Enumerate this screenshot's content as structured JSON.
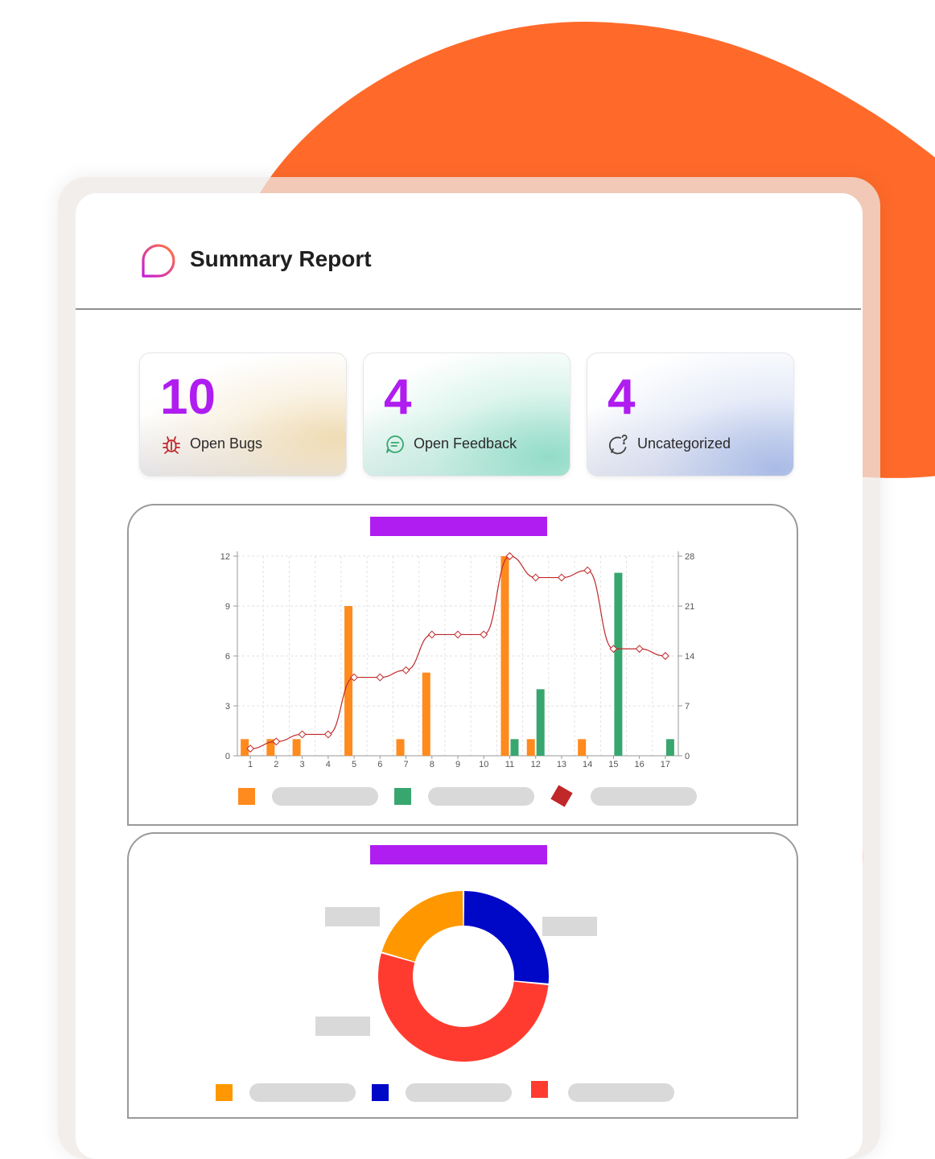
{
  "header": {
    "title": "Summary Report"
  },
  "stats": [
    {
      "value": "10",
      "label": "Open Bugs",
      "icon": "bug-icon"
    },
    {
      "value": "4",
      "label": "Open Feedback",
      "icon": "chat-icon"
    },
    {
      "value": "4",
      "label": "Uncategorized",
      "icon": "question-chat-icon"
    }
  ],
  "colors": {
    "accent": "#b01df0",
    "blob": "#ff6a2a",
    "bar_orange": "#ff8a1e",
    "bar_green": "#38a66f",
    "line_red": "#c0282a",
    "donut_orange": "#ff9800",
    "donut_blue": "#0008c8",
    "donut_red": "#ff3b30",
    "placeholder_gray": "#d9d9d9"
  },
  "chart_data": [
    {
      "type": "bar",
      "x": [
        1,
        2,
        3,
        4,
        5,
        6,
        7,
        8,
        9,
        10,
        11,
        12,
        13,
        14,
        15,
        16,
        17
      ],
      "series": [
        {
          "type": "bar",
          "color": "#ff8a1e",
          "values": [
            1,
            1,
            1,
            0,
            9,
            0,
            1,
            5,
            0,
            0,
            12,
            1,
            0,
            1,
            0,
            0,
            0
          ]
        },
        {
          "type": "bar",
          "color": "#38a66f",
          "values": [
            0,
            0,
            0,
            0,
            0,
            0,
            0,
            0,
            0,
            0,
            1,
            4,
            0,
            0,
            11,
            0,
            1
          ]
        },
        {
          "type": "line",
          "color": "#c0282a",
          "axis": "right",
          "values": [
            1,
            2,
            3,
            3,
            11,
            11,
            12,
            17,
            17,
            17,
            28,
            25,
            25,
            26,
            15,
            15,
            14
          ]
        }
      ],
      "y_left": {
        "min": 0,
        "max": 12,
        "ticks": [
          "0",
          "3",
          "6",
          "9",
          "12"
        ]
      },
      "y_right": {
        "min": 0,
        "max": 28,
        "ticks": [
          "0",
          "7",
          "14",
          "21",
          "28"
        ]
      },
      "x_ticks": [
        "1",
        "2",
        "3",
        "4",
        "5",
        "6",
        "7",
        "8",
        "9",
        "10",
        "11",
        "12",
        "13",
        "14",
        "15",
        "16",
        "17"
      ],
      "grid": true,
      "legend": "bottom"
    },
    {
      "type": "pie",
      "donut": true,
      "slices": [
        {
          "color": "#0008c8",
          "value": 26.5
        },
        {
          "color": "#ff3b30",
          "value": 53
        },
        {
          "color": "#ff9800",
          "value": 20.5
        }
      ],
      "legend": "bottom"
    }
  ]
}
